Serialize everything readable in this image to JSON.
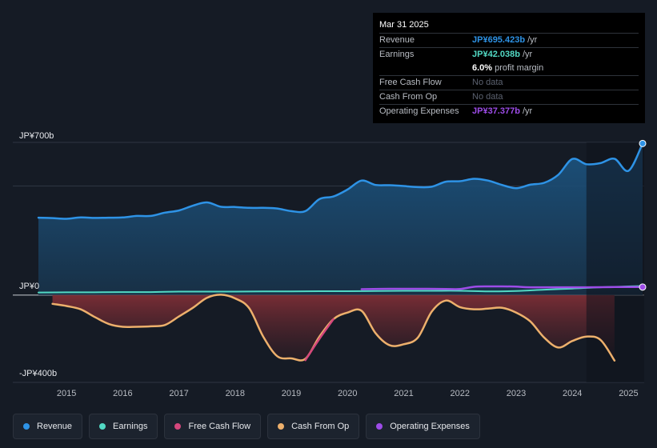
{
  "colors": {
    "revenue": "#2e93e6",
    "earnings": "#52d9c4",
    "free_cash_flow": "#d5477c",
    "cash_from_op": "#edb06c",
    "operating_expenses": "#9d4ce8",
    "background": "#151b25"
  },
  "tooltip": {
    "date": "Mar 31 2025",
    "rows": [
      {
        "label": "Revenue",
        "value": "JP¥695.423b",
        "unit": "/yr",
        "color": "#2e93e6"
      },
      {
        "label": "Earnings",
        "value": "JP¥42.038b",
        "unit": "/yr",
        "color": "#52d9c4"
      },
      {
        "label": "",
        "value": "6.0%",
        "unit": "profit margin",
        "color": "#ffffff"
      },
      {
        "label": "Free Cash Flow",
        "value": "No data",
        "unit": "",
        "color": "muted"
      },
      {
        "label": "Cash From Op",
        "value": "No data",
        "unit": "",
        "color": "muted"
      },
      {
        "label": "Operating Expenses",
        "value": "JP¥37.377b",
        "unit": "/yr",
        "color": "#9d4ce8"
      }
    ]
  },
  "legend": [
    {
      "label": "Revenue",
      "color": "#2e93e6"
    },
    {
      "label": "Earnings",
      "color": "#52d9c4"
    },
    {
      "label": "Free Cash Flow",
      "color": "#d5477c"
    },
    {
      "label": "Cash From Op",
      "color": "#edb06c"
    },
    {
      "label": "Operating Expenses",
      "color": "#9d4ce8"
    }
  ],
  "chart_data": {
    "type": "area",
    "title": "",
    "xlabel": "",
    "ylabel": "",
    "y_tick_labels": [
      {
        "label": "JP¥700b",
        "value": 700
      },
      {
        "label": "JP¥0",
        "value": 0
      },
      {
        "label": "-JP¥400b",
        "value": -400
      }
    ],
    "gridlines": [
      700,
      500,
      0
    ],
    "ylim": [
      -400,
      700
    ],
    "xlim": [
      2014.5,
      2025.25
    ],
    "x_ticks": [
      2015,
      2016,
      2017,
      2018,
      2019,
      2020,
      2021,
      2022,
      2023,
      2024,
      2025
    ],
    "x_tick_labels": [
      "2015",
      "2016",
      "2017",
      "2018",
      "2019",
      "2020",
      "2021",
      "2022",
      "2023",
      "2024",
      "2025"
    ],
    "forecast_shade_from": 2024.25,
    "series": [
      {
        "name": "Revenue",
        "key": "revenue",
        "x": [
          2014.5,
          2014.75,
          2015.0,
          2015.25,
          2015.5,
          2015.75,
          2016.0,
          2016.25,
          2016.5,
          2016.75,
          2017.0,
          2017.25,
          2017.5,
          2017.75,
          2018.0,
          2018.25,
          2018.5,
          2018.75,
          2019.0,
          2019.25,
          2019.5,
          2019.75,
          2020.0,
          2020.25,
          2020.5,
          2020.75,
          2021.0,
          2021.25,
          2021.5,
          2021.75,
          2022.0,
          2022.25,
          2022.5,
          2022.75,
          2023.0,
          2023.25,
          2023.5,
          2023.75,
          2024.0,
          2024.25,
          2024.5,
          2024.75,
          2025.0,
          2025.25
        ],
        "values": [
          355,
          353,
          350,
          356,
          354,
          355,
          356,
          363,
          363,
          378,
          388,
          410,
          425,
          405,
          404,
          400,
          400,
          397,
          385,
          385,
          440,
          452,
          484,
          525,
          505,
          504,
          500,
          495,
          497,
          520,
          522,
          533,
          525,
          505,
          490,
          506,
          515,
          552,
          624,
          600,
          605,
          625,
          570,
          695
        ]
      },
      {
        "name": "Earnings",
        "key": "earnings",
        "x": [
          2014.5,
          2015.0,
          2015.5,
          2016.0,
          2016.5,
          2017.0,
          2017.5,
          2018.0,
          2018.5,
          2019.0,
          2019.5,
          2020.0,
          2020.5,
          2021.0,
          2021.5,
          2022.0,
          2022.5,
          2023.0,
          2023.5,
          2024.0,
          2024.5,
          2025.0,
          2025.25
        ],
        "values": [
          12,
          13,
          13,
          14,
          14,
          16,
          16,
          16,
          17,
          17,
          18,
          18,
          19,
          20,
          20,
          20,
          17,
          19,
          25,
          30,
          36,
          40,
          42
        ]
      },
      {
        "name": "Operating Expenses",
        "key": "operating_expenses",
        "x": [
          2020.25,
          2020.75,
          2021.25,
          2021.75,
          2022.0,
          2022.25,
          2022.5,
          2022.75,
          2023.0,
          2023.25,
          2023.75,
          2024.25,
          2024.75,
          2025.25
        ],
        "values": [
          27,
          29,
          29,
          28,
          28,
          38,
          40,
          40,
          39,
          36,
          36,
          36,
          37,
          37
        ]
      },
      {
        "name": "Free Cash Flow",
        "key": "free_cash_flow",
        "x": [
          2019.25,
          2019.5,
          2019.75
        ],
        "values": [
          -298,
          -200,
          -110
        ]
      },
      {
        "name": "Cash From Op",
        "key": "cash_from_op",
        "x": [
          2014.75,
          2015.0,
          2015.25,
          2015.5,
          2015.75,
          2016.0,
          2016.25,
          2016.5,
          2016.75,
          2017.0,
          2017.25,
          2017.5,
          2017.75,
          2018.0,
          2018.25,
          2018.5,
          2018.75,
          2019.0,
          2019.25,
          2019.5,
          2019.75,
          2020.0,
          2020.25,
          2020.5,
          2020.75,
          2021.0,
          2021.25,
          2021.5,
          2021.75,
          2022.0,
          2022.25,
          2022.5,
          2022.75,
          2023.0,
          2023.25,
          2023.5,
          2023.75,
          2024.0,
          2024.25,
          2024.5,
          2024.75
        ],
        "values": [
          -40,
          -50,
          -65,
          -100,
          -132,
          -145,
          -145,
          -143,
          -137,
          -98,
          -58,
          -12,
          2,
          -15,
          -60,
          -190,
          -280,
          -290,
          -292,
          -190,
          -110,
          -80,
          -72,
          -175,
          -230,
          -225,
          -195,
          -75,
          -25,
          -55,
          -65,
          -62,
          -58,
          -80,
          -120,
          -195,
          -240,
          -210,
          -190,
          -205,
          -300
        ]
      }
    ],
    "end_markers": [
      {
        "key": "revenue",
        "x": 2025.25,
        "value": 695
      },
      {
        "key": "operating_expenses",
        "x": 2025.25,
        "value": 37
      }
    ]
  }
}
